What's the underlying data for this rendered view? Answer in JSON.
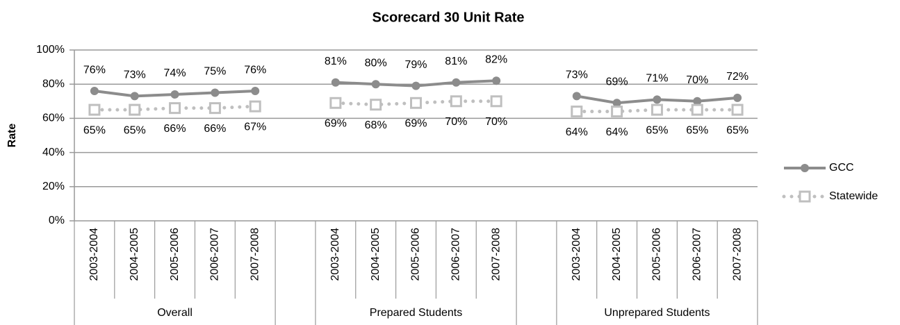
{
  "chart_data": {
    "type": "line",
    "title": "Scorecard 30 Unit Rate",
    "y_label": "Rate",
    "categories": [
      "2003-2004",
      "2004-2005",
      "2005-2006",
      "2006-2007",
      "2007-2008",
      null,
      "2003-2004",
      "2004-2005",
      "2005-2006",
      "2006-2007",
      "2007-2008",
      null,
      "2003-2004",
      "2004-2005",
      "2005-2006",
      "2006-2007",
      "2007-2008"
    ],
    "groups": [
      "Overall",
      "Prepared Students",
      "Unprepared Students"
    ],
    "series": [
      {
        "name": "GCC",
        "color": "#8c8c8c",
        "marker": "circle",
        "line": "solid",
        "values": [
          76,
          73,
          74,
          75,
          76,
          null,
          81,
          80,
          79,
          81,
          82,
          null,
          73,
          69,
          71,
          70,
          72
        ],
        "value_labels": [
          "76%",
          "73%",
          "74%",
          "75%",
          "76%",
          null,
          "81%",
          "80%",
          "79%",
          "81%",
          "82%",
          null,
          "73%",
          "69%",
          "71%",
          "70%",
          "72%"
        ]
      },
      {
        "name": "Statewide",
        "color": "#bfbfbf",
        "marker": "square",
        "line": "dotted",
        "values": [
          65,
          65,
          66,
          66,
          67,
          null,
          69,
          68,
          69,
          70,
          70,
          null,
          64,
          64,
          65,
          65,
          65
        ],
        "value_labels": [
          "65%",
          "65%",
          "66%",
          "66%",
          "67%",
          null,
          "69%",
          "68%",
          "69%",
          "70%",
          "70%",
          null,
          "64%",
          "64%",
          "65%",
          "65%",
          "65%"
        ]
      }
    ],
    "ylim": [
      0,
      100
    ],
    "yticks": [
      {
        "value": 0,
        "label": "0%"
      },
      {
        "value": 20,
        "label": "20%"
      },
      {
        "value": 40,
        "label": "40%"
      },
      {
        "value": 60,
        "label": "60%"
      },
      {
        "value": 80,
        "label": "80%"
      },
      {
        "value": 100,
        "label": "100%"
      }
    ],
    "grid": true,
    "legend": "right"
  }
}
